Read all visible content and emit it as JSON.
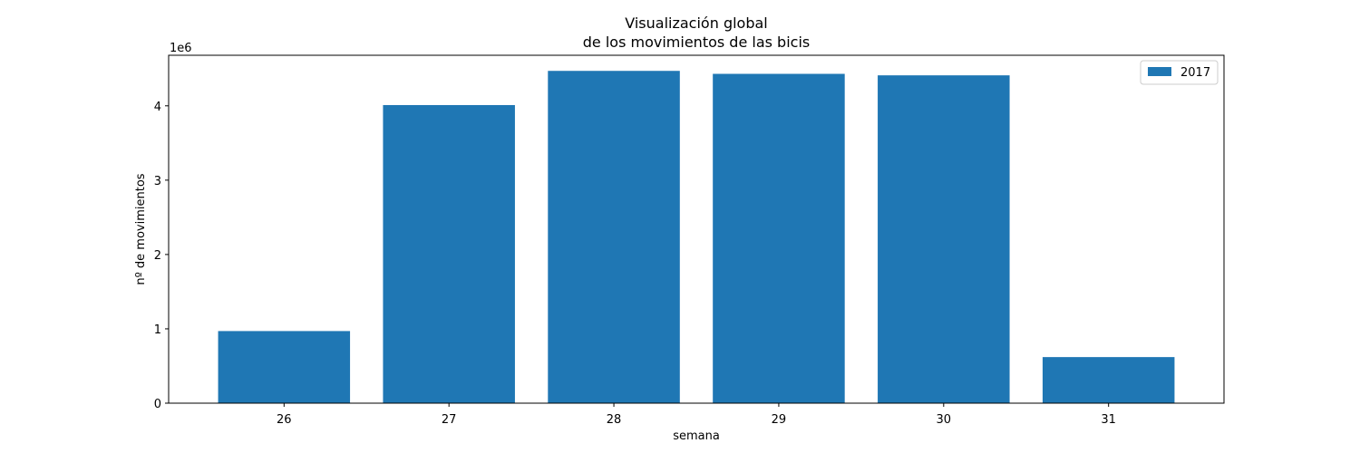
{
  "chart_data": {
    "type": "bar",
    "title_lines": [
      "Visualización global",
      "de los movimientos de las bicis"
    ],
    "xlabel": "semana",
    "ylabel": "nº de movimientos",
    "y_offset_label": "1e6",
    "y_scale": 1000000,
    "categories": [
      "26",
      "27",
      "28",
      "29",
      "30",
      "31"
    ],
    "series": [
      {
        "name": "2017",
        "color": "#1f77b4",
        "values": [
          970000,
          4010000,
          4470000,
          4430000,
          4410000,
          620000
        ]
      }
    ],
    "ylim": [
      0,
      4680000
    ],
    "yticks": [
      0,
      1000000,
      2000000,
      3000000,
      4000000
    ],
    "ytick_labels": [
      "0",
      "1",
      "2",
      "3",
      "4"
    ],
    "grid": false,
    "legend_position": "top-right"
  }
}
